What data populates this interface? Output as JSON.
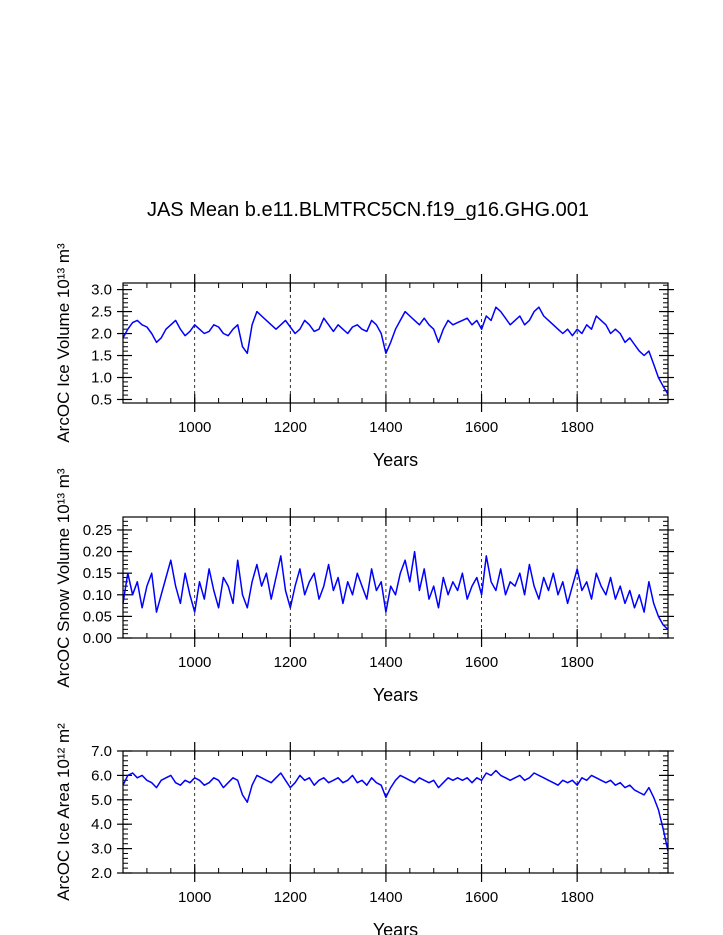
{
  "figure": {
    "title": "JAS Mean b.e11.BLMTRC5CN.f19_g16.GHG.001",
    "series_color": "#0000ff"
  },
  "chart_data": [
    {
      "type": "line",
      "ylabel": "ArcOC Ice Volume 10¹³ m³",
      "xlabel": "Years",
      "xlim": [
        850,
        1990
      ],
      "ylim": [
        0.42,
        3.15
      ],
      "x_ticks": [
        "1000",
        "1200",
        "1400",
        "1600",
        "1800"
      ],
      "y_ticks": [
        "0.5",
        "1.0",
        "1.5",
        "2.0",
        "2.5",
        "3.0"
      ],
      "grid": "vertical dashed at major x ticks",
      "series": [
        {
          "x": [
            850,
            860,
            870,
            880,
            890,
            900,
            910,
            920,
            930,
            940,
            950,
            960,
            970,
            980,
            990,
            1000,
            1010,
            1020,
            1030,
            1040,
            1050,
            1060,
            1070,
            1080,
            1090,
            1100,
            1110,
            1120,
            1130,
            1140,
            1150,
            1160,
            1170,
            1180,
            1190,
            1200,
            1210,
            1220,
            1230,
            1240,
            1250,
            1260,
            1270,
            1280,
            1290,
            1300,
            1310,
            1320,
            1330,
            1340,
            1350,
            1360,
            1370,
            1380,
            1390,
            1400,
            1410,
            1420,
            1430,
            1440,
            1450,
            1460,
            1470,
            1480,
            1490,
            1500,
            1510,
            1520,
            1530,
            1540,
            1550,
            1560,
            1570,
            1580,
            1590,
            1600,
            1610,
            1620,
            1630,
            1640,
            1650,
            1660,
            1670,
            1680,
            1690,
            1700,
            1710,
            1720,
            1730,
            1740,
            1750,
            1760,
            1770,
            1780,
            1790,
            1800,
            1810,
            1820,
            1830,
            1840,
            1850,
            1860,
            1870,
            1880,
            1890,
            1900,
            1910,
            1920,
            1930,
            1940,
            1950,
            1960,
            1970,
            1980,
            1990
          ],
          "y": [
            1.9,
            2.1,
            2.25,
            2.3,
            2.2,
            2.15,
            2.0,
            1.8,
            1.9,
            2.1,
            2.2,
            2.3,
            2.1,
            1.95,
            2.05,
            2.2,
            2.1,
            2.0,
            2.05,
            2.2,
            2.15,
            2.0,
            1.95,
            2.1,
            2.2,
            1.7,
            1.55,
            2.2,
            2.5,
            2.4,
            2.3,
            2.2,
            2.1,
            2.2,
            2.3,
            2.15,
            2.0,
            2.1,
            2.3,
            2.2,
            2.05,
            2.1,
            2.35,
            2.2,
            2.05,
            2.2,
            2.1,
            2.0,
            2.15,
            2.2,
            2.1,
            2.05,
            2.3,
            2.2,
            2.0,
            1.55,
            1.8,
            2.1,
            2.3,
            2.5,
            2.4,
            2.3,
            2.2,
            2.35,
            2.2,
            2.1,
            1.8,
            2.1,
            2.3,
            2.2,
            2.25,
            2.3,
            2.35,
            2.2,
            2.3,
            2.1,
            2.4,
            2.3,
            2.6,
            2.5,
            2.35,
            2.2,
            2.3,
            2.4,
            2.2,
            2.3,
            2.5,
            2.6,
            2.4,
            2.3,
            2.2,
            2.1,
            2.0,
            2.1,
            1.95,
            2.1,
            2.0,
            2.2,
            2.1,
            2.4,
            2.3,
            2.2,
            2.0,
            2.1,
            2.0,
            1.8,
            1.9,
            1.75,
            1.6,
            1.5,
            1.6,
            1.3,
            1.0,
            0.8,
            0.62
          ]
        }
      ]
    },
    {
      "type": "line",
      "ylabel": "ArcOC Snow Volume 10¹³ m³",
      "xlabel": "Years",
      "xlim": [
        850,
        1990
      ],
      "ylim": [
        0.0,
        0.28
      ],
      "x_ticks": [
        "1000",
        "1200",
        "1400",
        "1600",
        "1800"
      ],
      "y_ticks": [
        "0.00",
        "0.05",
        "0.10",
        "0.15",
        "0.20",
        "0.25"
      ],
      "grid": "vertical dashed at major x ticks",
      "series": [
        {
          "x": [
            850,
            860,
            870,
            880,
            890,
            900,
            910,
            920,
            930,
            940,
            950,
            960,
            970,
            980,
            990,
            1000,
            1010,
            1020,
            1030,
            1040,
            1050,
            1060,
            1070,
            1080,
            1090,
            1100,
            1110,
            1120,
            1130,
            1140,
            1150,
            1160,
            1170,
            1180,
            1190,
            1200,
            1210,
            1220,
            1230,
            1240,
            1250,
            1260,
            1270,
            1280,
            1290,
            1300,
            1310,
            1320,
            1330,
            1340,
            1350,
            1360,
            1370,
            1380,
            1390,
            1400,
            1410,
            1420,
            1430,
            1440,
            1450,
            1460,
            1470,
            1480,
            1490,
            1500,
            1510,
            1520,
            1530,
            1540,
            1550,
            1560,
            1570,
            1580,
            1590,
            1600,
            1610,
            1620,
            1630,
            1640,
            1650,
            1660,
            1670,
            1680,
            1690,
            1700,
            1710,
            1720,
            1730,
            1740,
            1750,
            1760,
            1770,
            1780,
            1790,
            1800,
            1810,
            1820,
            1830,
            1840,
            1850,
            1860,
            1870,
            1880,
            1890,
            1900,
            1910,
            1920,
            1930,
            1940,
            1950,
            1960,
            1970,
            1980,
            1990
          ],
          "y": [
            0.08,
            0.15,
            0.1,
            0.13,
            0.07,
            0.12,
            0.15,
            0.06,
            0.1,
            0.14,
            0.18,
            0.12,
            0.08,
            0.15,
            0.1,
            0.06,
            0.13,
            0.09,
            0.16,
            0.11,
            0.07,
            0.14,
            0.12,
            0.08,
            0.18,
            0.1,
            0.07,
            0.13,
            0.17,
            0.12,
            0.15,
            0.09,
            0.14,
            0.19,
            0.11,
            0.07,
            0.12,
            0.16,
            0.1,
            0.13,
            0.15,
            0.09,
            0.12,
            0.17,
            0.11,
            0.14,
            0.08,
            0.13,
            0.1,
            0.15,
            0.12,
            0.09,
            0.16,
            0.11,
            0.13,
            0.06,
            0.12,
            0.1,
            0.15,
            0.18,
            0.13,
            0.2,
            0.11,
            0.16,
            0.09,
            0.12,
            0.07,
            0.14,
            0.1,
            0.13,
            0.11,
            0.15,
            0.09,
            0.12,
            0.14,
            0.1,
            0.19,
            0.13,
            0.11,
            0.16,
            0.1,
            0.13,
            0.12,
            0.15,
            0.1,
            0.17,
            0.12,
            0.09,
            0.14,
            0.11,
            0.15,
            0.1,
            0.13,
            0.08,
            0.12,
            0.16,
            0.11,
            0.13,
            0.09,
            0.15,
            0.12,
            0.1,
            0.14,
            0.09,
            0.12,
            0.08,
            0.11,
            0.07,
            0.1,
            0.06,
            0.13,
            0.08,
            0.05,
            0.03,
            0.02
          ]
        }
      ]
    },
    {
      "type": "line",
      "ylabel": "ArcOC Ice Area 10¹² m²",
      "xlabel": "Years",
      "xlim": [
        850,
        1990
      ],
      "ylim": [
        2.0,
        7.0
      ],
      "x_ticks": [
        "1000",
        "1200",
        "1400",
        "1600",
        "1800"
      ],
      "y_ticks": [
        "2.0",
        "3.0",
        "4.0",
        "5.0",
        "6.0",
        "7.0"
      ],
      "grid": "vertical dashed at major x ticks",
      "series": [
        {
          "x": [
            850,
            860,
            870,
            880,
            890,
            900,
            910,
            920,
            930,
            940,
            950,
            960,
            970,
            980,
            990,
            1000,
            1010,
            1020,
            1030,
            1040,
            1050,
            1060,
            1070,
            1080,
            1090,
            1100,
            1110,
            1120,
            1130,
            1140,
            1150,
            1160,
            1170,
            1180,
            1190,
            1200,
            1210,
            1220,
            1230,
            1240,
            1250,
            1260,
            1270,
            1280,
            1290,
            1300,
            1310,
            1320,
            1330,
            1340,
            1350,
            1360,
            1370,
            1380,
            1390,
            1400,
            1410,
            1420,
            1430,
            1440,
            1450,
            1460,
            1470,
            1480,
            1490,
            1500,
            1510,
            1520,
            1530,
            1540,
            1550,
            1560,
            1570,
            1580,
            1590,
            1600,
            1610,
            1620,
            1630,
            1640,
            1650,
            1660,
            1670,
            1680,
            1690,
            1700,
            1710,
            1720,
            1730,
            1740,
            1750,
            1760,
            1770,
            1780,
            1790,
            1800,
            1810,
            1820,
            1830,
            1840,
            1850,
            1860,
            1870,
            1880,
            1890,
            1900,
            1910,
            1920,
            1930,
            1940,
            1950,
            1960,
            1970,
            1980,
            1990
          ],
          "y": [
            5.6,
            6.0,
            6.1,
            5.9,
            6.0,
            5.8,
            5.7,
            5.5,
            5.8,
            5.9,
            6.0,
            5.7,
            5.6,
            5.8,
            5.7,
            5.9,
            5.8,
            5.6,
            5.7,
            5.9,
            5.8,
            5.5,
            5.7,
            5.9,
            5.8,
            5.2,
            4.9,
            5.6,
            6.0,
            5.9,
            5.8,
            5.7,
            5.9,
            6.1,
            5.8,
            5.5,
            5.7,
            6.0,
            5.8,
            5.9,
            5.6,
            5.8,
            5.9,
            5.7,
            5.8,
            5.9,
            5.7,
            5.8,
            6.0,
            5.7,
            5.8,
            5.6,
            5.9,
            5.7,
            5.6,
            5.1,
            5.5,
            5.8,
            6.0,
            5.9,
            5.8,
            5.7,
            5.9,
            5.8,
            5.7,
            5.8,
            5.5,
            5.7,
            5.9,
            5.8,
            5.9,
            5.8,
            5.9,
            5.7,
            5.9,
            5.8,
            6.1,
            6.0,
            6.2,
            6.0,
            5.9,
            5.8,
            5.9,
            6.0,
            5.8,
            5.9,
            6.1,
            6.0,
            5.9,
            5.8,
            5.7,
            5.6,
            5.8,
            5.7,
            5.8,
            5.6,
            5.9,
            5.8,
            6.0,
            5.9,
            5.8,
            5.7,
            5.8,
            5.6,
            5.7,
            5.5,
            5.6,
            5.4,
            5.3,
            5.2,
            5.5,
            5.1,
            4.6,
            3.8,
            2.9
          ]
        }
      ]
    }
  ]
}
